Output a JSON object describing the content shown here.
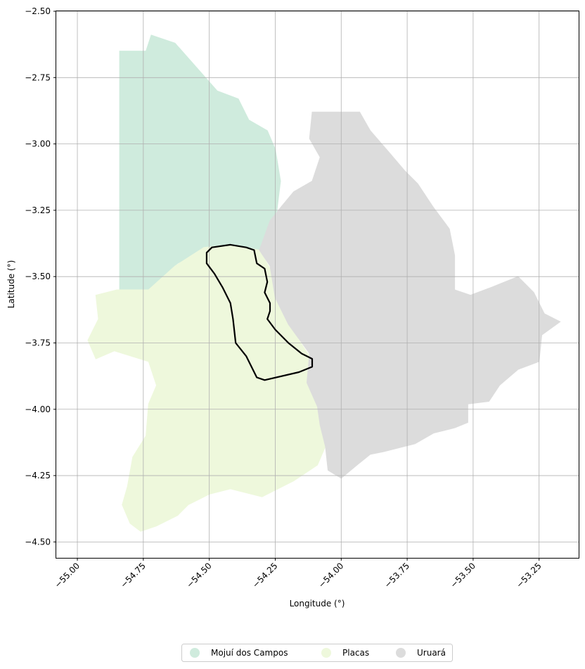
{
  "map": {
    "xlabel": "Longitude (°)",
    "ylabel": "Latitude (°)",
    "xlim": [
      -55.08,
      -53.1
    ],
    "ylim": [
      -4.56,
      -2.5
    ],
    "xticks": [
      -55.0,
      -54.75,
      -54.5,
      -54.25,
      -54.0,
      -53.75,
      -53.5,
      -53.25
    ],
    "xtick_labels": [
      "−55.00",
      "−54.75",
      "−54.50",
      "−54.25",
      "−54.00",
      "−53.75",
      "−53.50",
      "−53.25"
    ],
    "yticks": [
      -2.5,
      -2.75,
      -3.0,
      -3.25,
      -3.5,
      -3.75,
      -4.0,
      -4.25,
      -4.5
    ],
    "ytick_labels": [
      "−2.50",
      "−2.75",
      "−3.00",
      "−3.25",
      "−3.50",
      "−3.75",
      "−4.00",
      "−4.25",
      "−4.50"
    ],
    "grid": true,
    "legend": {
      "placement": "bottom-center",
      "entries": [
        "Mojuí dos Campos",
        "Placas",
        "Uruará"
      ]
    },
    "regions": [
      {
        "name": "Mojuí dos Campos",
        "color": "#cfebdd",
        "coords": [
          [
            -54.84,
            -2.65
          ],
          [
            -54.74,
            -2.65
          ],
          [
            -54.72,
            -2.59
          ],
          [
            -54.63,
            -2.62
          ],
          [
            -54.55,
            -2.71
          ],
          [
            -54.47,
            -2.8
          ],
          [
            -54.39,
            -2.83
          ],
          [
            -54.35,
            -2.91
          ],
          [
            -54.28,
            -2.95
          ],
          [
            -54.25,
            -3.02
          ],
          [
            -54.23,
            -3.14
          ],
          [
            -54.25,
            -3.3
          ],
          [
            -54.28,
            -3.37
          ],
          [
            -54.3,
            -3.41
          ],
          [
            -54.4,
            -3.43
          ],
          [
            -54.52,
            -3.4
          ],
          [
            -54.62,
            -3.45
          ],
          [
            -54.73,
            -3.55
          ],
          [
            -54.84,
            -3.56
          ]
        ]
      },
      {
        "name": "Placas",
        "color": "#eef8dc",
        "coords": [
          [
            -54.52,
            -3.39
          ],
          [
            -54.42,
            -3.38
          ],
          [
            -54.31,
            -3.4
          ],
          [
            -54.27,
            -3.47
          ],
          [
            -54.25,
            -3.58
          ],
          [
            -54.2,
            -3.68
          ],
          [
            -54.12,
            -3.8
          ],
          [
            -54.13,
            -3.9
          ],
          [
            -54.09,
            -3.98
          ],
          [
            -54.08,
            -4.06
          ],
          [
            -54.06,
            -4.14
          ],
          [
            -54.09,
            -4.21
          ],
          [
            -54.18,
            -4.27
          ],
          [
            -54.3,
            -4.33
          ],
          [
            -54.42,
            -4.3
          ],
          [
            -54.5,
            -4.32
          ],
          [
            -54.58,
            -4.36
          ],
          [
            -54.62,
            -4.4
          ],
          [
            -54.7,
            -4.44
          ],
          [
            -54.76,
            -4.46
          ],
          [
            -54.8,
            -4.43
          ],
          [
            -54.83,
            -4.36
          ],
          [
            -54.81,
            -4.29
          ],
          [
            -54.79,
            -4.18
          ],
          [
            -54.74,
            -4.1
          ],
          [
            -54.73,
            -3.98
          ],
          [
            -54.7,
            -3.91
          ],
          [
            -54.73,
            -3.82
          ],
          [
            -54.86,
            -3.78
          ],
          [
            -54.93,
            -3.81
          ],
          [
            -54.96,
            -3.74
          ],
          [
            -54.92,
            -3.66
          ],
          [
            -54.93,
            -3.57
          ],
          [
            -54.85,
            -3.55
          ],
          [
            -54.73,
            -3.55
          ],
          [
            -54.63,
            -3.46
          ]
        ]
      },
      {
        "name": "Uruará",
        "color": "#dcdcdc",
        "coords": [
          [
            -54.11,
            -2.88
          ],
          [
            -53.93,
            -2.88
          ],
          [
            -53.89,
            -2.95
          ],
          [
            -53.82,
            -3.03
          ],
          [
            -53.76,
            -3.1
          ],
          [
            -53.71,
            -3.15
          ],
          [
            -53.65,
            -3.24
          ],
          [
            -53.59,
            -3.32
          ],
          [
            -53.57,
            -3.42
          ],
          [
            -53.57,
            -3.55
          ],
          [
            -53.51,
            -3.57
          ],
          [
            -53.43,
            -3.54
          ],
          [
            -53.33,
            -3.5
          ],
          [
            -53.27,
            -3.56
          ],
          [
            -53.23,
            -3.64
          ],
          [
            -53.17,
            -3.67
          ],
          [
            -53.24,
            -3.72
          ],
          [
            -53.25,
            -3.82
          ],
          [
            -53.33,
            -3.85
          ],
          [
            -53.4,
            -3.91
          ],
          [
            -53.44,
            -3.97
          ],
          [
            -53.52,
            -3.98
          ],
          [
            -53.52,
            -4.05
          ],
          [
            -53.57,
            -4.07
          ],
          [
            -53.65,
            -4.09
          ],
          [
            -53.72,
            -4.13
          ],
          [
            -53.84,
            -4.16
          ],
          [
            -53.89,
            -4.17
          ],
          [
            -53.94,
            -4.21
          ],
          [
            -54.0,
            -4.26
          ],
          [
            -54.05,
            -4.23
          ],
          [
            -54.06,
            -4.14
          ],
          [
            -54.08,
            -4.06
          ],
          [
            -54.09,
            -3.99
          ],
          [
            -54.13,
            -3.9
          ],
          [
            -54.12,
            -3.79
          ],
          [
            -54.2,
            -3.68
          ],
          [
            -54.25,
            -3.58
          ],
          [
            -54.27,
            -3.46
          ],
          [
            -54.31,
            -3.4
          ],
          [
            -54.27,
            -3.29
          ],
          [
            -54.23,
            -3.24
          ],
          [
            -54.18,
            -3.18
          ],
          [
            -54.11,
            -3.14
          ],
          [
            -54.08,
            -3.05
          ],
          [
            -54.12,
            -2.98
          ]
        ]
      }
    ],
    "outline": {
      "color": "#000000",
      "coords": [
        [
          -54.51,
          -3.41
        ],
        [
          -54.49,
          -3.39
        ],
        [
          -54.42,
          -3.38
        ],
        [
          -54.36,
          -3.39
        ],
        [
          -54.33,
          -3.4
        ],
        [
          -54.32,
          -3.45
        ],
        [
          -54.29,
          -3.47
        ],
        [
          -54.28,
          -3.52
        ],
        [
          -54.29,
          -3.56
        ],
        [
          -54.27,
          -3.6
        ],
        [
          -54.27,
          -3.63
        ],
        [
          -54.28,
          -3.66
        ],
        [
          -54.25,
          -3.7
        ],
        [
          -54.2,
          -3.75
        ],
        [
          -54.15,
          -3.79
        ],
        [
          -54.11,
          -3.81
        ],
        [
          -54.11,
          -3.84
        ],
        [
          -54.16,
          -3.86
        ],
        [
          -54.29,
          -3.89
        ],
        [
          -54.32,
          -3.88
        ],
        [
          -54.36,
          -3.8
        ],
        [
          -54.4,
          -3.75
        ],
        [
          -54.41,
          -3.66
        ],
        [
          -54.42,
          -3.6
        ],
        [
          -54.45,
          -3.54
        ],
        [
          -54.48,
          -3.49
        ],
        [
          -54.51,
          -3.45
        ]
      ]
    }
  }
}
